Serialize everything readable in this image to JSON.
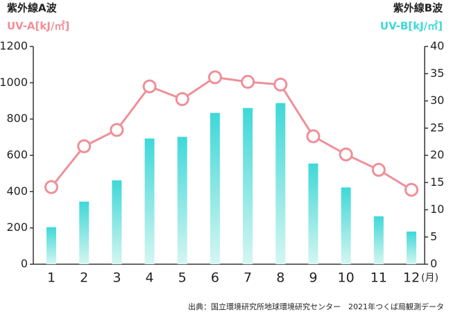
{
  "chart_data": {
    "type": "combo",
    "categories": [
      "1",
      "2",
      "3",
      "4",
      "5",
      "6",
      "7",
      "8",
      "9",
      "10",
      "11",
      "12"
    ],
    "x_unit": "(月)",
    "ylabel": "紫外線A波",
    "y2label": "紫外線B波",
    "ylim": [
      0,
      1200
    ],
    "yticks": [
      0,
      200,
      400,
      600,
      800,
      1000,
      1200
    ],
    "y2lim": [
      0,
      40
    ],
    "y2ticks": [
      0,
      5,
      10,
      15,
      20,
      25,
      30,
      35,
      40
    ],
    "series": [
      {
        "name": "UV-B[kJ/㎡]",
        "type": "bar",
        "axis": "y2",
        "color": "#3fd8d8",
        "values": [
          6.8,
          11.5,
          15.4,
          23.1,
          23.4,
          27.8,
          28.7,
          29.6,
          18.5,
          14.1,
          8.8,
          6.0
        ]
      },
      {
        "name": "UV-A[kJ/㎡]",
        "type": "line",
        "color": "#ef8f98",
        "values": [
          425,
          650,
          740,
          980,
          910,
          1030,
          1005,
          990,
          705,
          605,
          520,
          410
        ]
      }
    ],
    "source": "出典：国立環境研究所地球環境研究センター　2021年つくば局観測データ"
  }
}
